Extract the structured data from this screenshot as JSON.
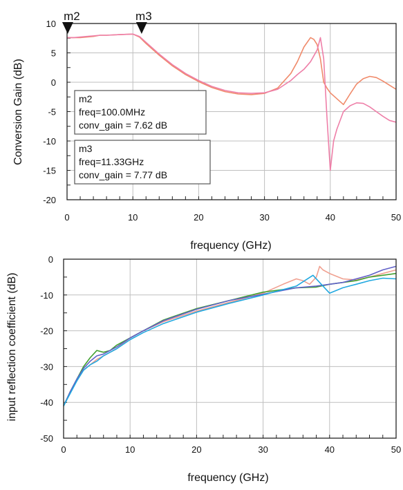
{
  "chart_data": [
    {
      "type": "line",
      "xlabel": "frequency (GHz)",
      "ylabel": "Conversion Gain (dB)",
      "xlim": [
        0,
        50
      ],
      "ylim": [
        -20,
        10
      ],
      "x_ticks": [
        "0",
        "10",
        "20",
        "30",
        "40",
        "50"
      ],
      "y_ticks": [
        "10",
        "5",
        "0",
        "-5",
        "-10",
        "-15",
        "-20"
      ],
      "grid": true,
      "series": [
        {
          "color": "#f08a6a",
          "x": [
            0,
            1,
            2,
            3,
            4,
            5,
            6,
            8,
            10,
            11,
            12,
            14,
            16,
            18,
            20,
            22,
            24,
            26,
            28,
            30,
            32,
            34,
            35,
            36,
            37,
            37.5,
            38,
            38.5,
            39,
            39.5,
            40,
            41,
            42,
            43,
            44,
            45,
            46,
            47,
            48,
            49,
            50
          ],
          "y": [
            7.6,
            7.6,
            7.6,
            7.7,
            7.8,
            8.0,
            8.0,
            8.1,
            8.2,
            7.7,
            6.6,
            4.6,
            2.8,
            1.3,
            0.1,
            -0.9,
            -1.6,
            -2.0,
            -2.1,
            -1.9,
            -1.0,
            1.5,
            3.5,
            6.0,
            7.6,
            7.3,
            6.4,
            4.0,
            0.0,
            -1.0,
            -1.8,
            -2.8,
            -3.8,
            -2.0,
            -0.3,
            0.6,
            1.0,
            0.8,
            0.2,
            -0.5,
            -1.2
          ]
        },
        {
          "color": "#ee7fa8",
          "x": [
            0,
            1,
            2,
            3,
            4,
            5,
            6,
            8,
            10,
            11,
            12,
            14,
            16,
            18,
            20,
            22,
            24,
            26,
            28,
            30,
            32,
            34,
            35,
            36,
            37,
            38,
            38.5,
            39,
            39.5,
            40,
            40.5,
            41,
            42,
            43,
            44,
            45,
            46,
            47,
            48,
            49,
            50
          ],
          "y": [
            7.6,
            7.6,
            7.7,
            7.8,
            7.9,
            8.0,
            8.0,
            8.1,
            8.2,
            7.8,
            6.8,
            4.8,
            3.0,
            1.5,
            0.3,
            -0.7,
            -1.4,
            -1.8,
            -1.9,
            -1.8,
            -1.2,
            0.3,
            1.3,
            2.2,
            3.5,
            5.5,
            7.6,
            4.0,
            -6.0,
            -15.0,
            -10.0,
            -8.0,
            -5.0,
            -4.0,
            -3.5,
            -3.6,
            -4.2,
            -5.0,
            -5.8,
            -6.5,
            -6.8
          ]
        }
      ],
      "markers": [
        {
          "name": "m2",
          "lines": [
            "m2",
            "freq=100.0MHz",
            "conv_gain = 7.62 dB"
          ],
          "x": 0.1,
          "y": 7.62
        },
        {
          "name": "m3",
          "lines": [
            "m3",
            "freq=11.33GHz",
            "conv_gain = 7.77 dB"
          ],
          "x": 11.33,
          "y": 7.77
        }
      ]
    },
    {
      "type": "line",
      "xlabel": "frequency (GHz)",
      "ylabel": "input reflection coefficient (dB)",
      "xlim": [
        0,
        50
      ],
      "ylim": [
        -50,
        0
      ],
      "x_ticks": [
        "0",
        "10",
        "20",
        "30",
        "40",
        "50"
      ],
      "y_ticks": [
        "0",
        "-10",
        "-20",
        "-30",
        "-40",
        "-50"
      ],
      "grid": true,
      "series": [
        {
          "color": "#f0a090",
          "x": [
            0,
            1,
            2,
            3,
            4,
            5,
            6,
            7,
            8,
            10,
            12,
            15,
            20,
            25,
            30,
            33,
            35,
            36,
            37,
            38,
            38.5,
            39,
            40,
            42,
            44,
            46,
            48,
            50
          ],
          "y": [
            -41,
            -37,
            -34,
            -31,
            -29.5,
            -28,
            -27,
            -26,
            -25,
            -22,
            -20,
            -17.5,
            -14.5,
            -12,
            -9.5,
            -7,
            -5.5,
            -6,
            -7,
            -5,
            -2,
            -3,
            -4,
            -5.5,
            -5.8,
            -5,
            -4,
            -3
          ]
        },
        {
          "color": "#40a030",
          "x": [
            0,
            1,
            2,
            3,
            4,
            5,
            6,
            7,
            8,
            10,
            12,
            15,
            20,
            25,
            30,
            35,
            38,
            40,
            42,
            44,
            46,
            48,
            50
          ],
          "y": [
            -41,
            -37,
            -33.5,
            -30,
            -27.5,
            -25.5,
            -26,
            -25.5,
            -24,
            -22,
            -20,
            -17,
            -13.8,
            -11.5,
            -9.2,
            -8,
            -7.8,
            -7,
            -6.5,
            -6,
            -5,
            -4.5,
            -4
          ]
        },
        {
          "color": "#6060c8",
          "x": [
            0,
            1,
            2,
            3,
            4,
            5,
            6,
            7,
            8,
            10,
            12,
            15,
            20,
            25,
            30,
            35,
            38,
            40,
            42,
            44,
            46,
            48,
            50
          ],
          "y": [
            -41,
            -37,
            -33.5,
            -30.5,
            -28.5,
            -27,
            -26.5,
            -25.5,
            -24.5,
            -22,
            -20,
            -17.2,
            -14,
            -11.5,
            -9.8,
            -8,
            -7.5,
            -7,
            -6.5,
            -5.5,
            -4.5,
            -3,
            -2
          ]
        },
        {
          "color": "#20a8e0",
          "x": [
            0,
            1,
            2,
            3,
            4,
            5,
            6,
            7,
            8,
            10,
            12,
            15,
            20,
            25,
            30,
            35,
            37.5,
            39,
            40,
            42,
            44,
            46,
            48,
            50
          ],
          "y": [
            -41,
            -37.5,
            -34,
            -31,
            -29.5,
            -28.5,
            -27,
            -26,
            -25,
            -22.5,
            -20.5,
            -18,
            -14.8,
            -12.3,
            -10,
            -7.5,
            -4.5,
            -7.5,
            -9.5,
            -8,
            -7,
            -6,
            -5.3,
            -5.5
          ]
        }
      ]
    }
  ]
}
